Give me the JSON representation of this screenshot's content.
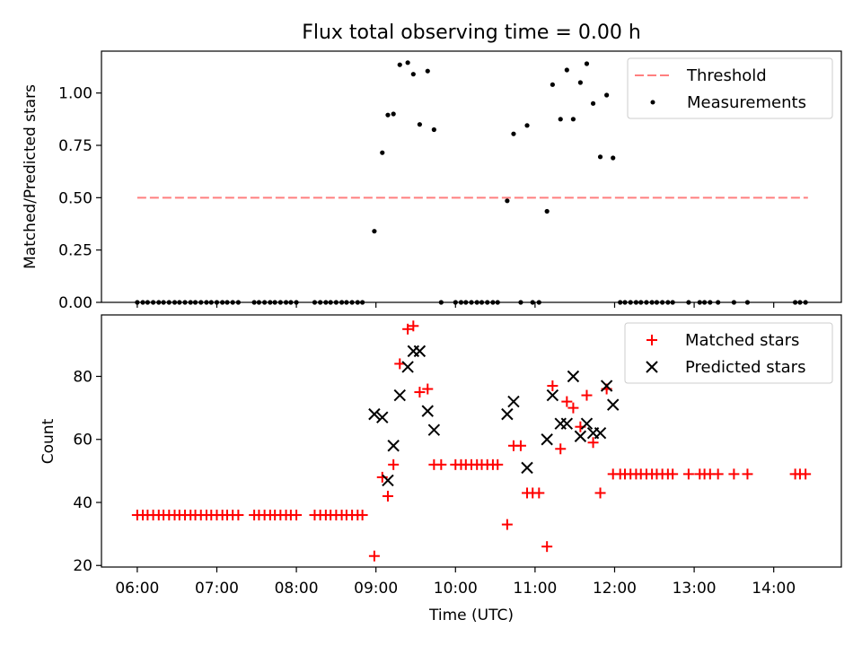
{
  "chart_data": [
    {
      "type": "scatter",
      "title": "Flux total observing time = 0.00 h",
      "xlabel": "",
      "ylabel": "Matched/Predicted stars",
      "xlim": [
        5.55,
        14.85
      ],
      "ylim": [
        0,
        1.2
      ],
      "yticks": [
        {
          "value": 0.0,
          "label": "0.00"
        },
        {
          "value": 0.25,
          "label": "0.25"
        },
        {
          "value": 0.5,
          "label": "0.50"
        },
        {
          "value": 0.75,
          "label": "0.75"
        },
        {
          "value": 1.0,
          "label": "1.00"
        }
      ],
      "legend_position": "top-right",
      "threshold": {
        "name": "Threshold",
        "value": 0.5,
        "x_range": [
          6.0,
          14.43
        ],
        "color": "#ff7f7f"
      },
      "series": [
        {
          "name": "Measurements",
          "color": "#000000",
          "points": [
            [
              6.0,
              0
            ],
            [
              6.07,
              0
            ],
            [
              6.13,
              0
            ],
            [
              6.2,
              0
            ],
            [
              6.27,
              0
            ],
            [
              6.33,
              0
            ],
            [
              6.4,
              0
            ],
            [
              6.47,
              0
            ],
            [
              6.53,
              0
            ],
            [
              6.6,
              0
            ],
            [
              6.67,
              0
            ],
            [
              6.73,
              0
            ],
            [
              6.8,
              0
            ],
            [
              6.87,
              0
            ],
            [
              6.93,
              0
            ],
            [
              7.0,
              0
            ],
            [
              7.07,
              0
            ],
            [
              7.13,
              0
            ],
            [
              7.2,
              0
            ],
            [
              7.27,
              0
            ],
            [
              7.47,
              0
            ],
            [
              7.53,
              0
            ],
            [
              7.6,
              0
            ],
            [
              7.67,
              0
            ],
            [
              7.73,
              0
            ],
            [
              7.8,
              0
            ],
            [
              7.87,
              0
            ],
            [
              7.93,
              0
            ],
            [
              8.0,
              0
            ],
            [
              8.23,
              0
            ],
            [
              8.3,
              0
            ],
            [
              8.37,
              0
            ],
            [
              8.43,
              0
            ],
            [
              8.5,
              0
            ],
            [
              8.57,
              0
            ],
            [
              8.63,
              0
            ],
            [
              8.7,
              0
            ],
            [
              8.77,
              0
            ],
            [
              8.83,
              0
            ],
            [
              8.98,
              0.34
            ],
            [
              9.08,
              0.715
            ],
            [
              9.15,
              0.895
            ],
            [
              9.22,
              0.9
            ],
            [
              9.3,
              1.135
            ],
            [
              9.4,
              1.145
            ],
            [
              9.47,
              1.09
            ],
            [
              9.55,
              0.85
            ],
            [
              9.65,
              1.105
            ],
            [
              9.73,
              0.825
            ],
            [
              9.82,
              0
            ],
            [
              10.0,
              0
            ],
            [
              10.07,
              0
            ],
            [
              10.13,
              0
            ],
            [
              10.2,
              0
            ],
            [
              10.27,
              0
            ],
            [
              10.33,
              0
            ],
            [
              10.4,
              0
            ],
            [
              10.47,
              0
            ],
            [
              10.53,
              0
            ],
            [
              10.65,
              0.485
            ],
            [
              10.73,
              0.805
            ],
            [
              10.82,
              0
            ],
            [
              10.9,
              0.845
            ],
            [
              10.97,
              0
            ],
            [
              11.05,
              0
            ],
            [
              11.15,
              0.435
            ],
            [
              11.22,
              1.04
            ],
            [
              11.32,
              0.875
            ],
            [
              11.4,
              1.11
            ],
            [
              11.48,
              0.875
            ],
            [
              11.57,
              1.05
            ],
            [
              11.65,
              1.14
            ],
            [
              11.73,
              0.95
            ],
            [
              11.82,
              0.695
            ],
            [
              11.9,
              0.99
            ],
            [
              11.98,
              0.69
            ],
            [
              12.07,
              0
            ],
            [
              12.13,
              0
            ],
            [
              12.2,
              0
            ],
            [
              12.27,
              0
            ],
            [
              12.33,
              0
            ],
            [
              12.4,
              0
            ],
            [
              12.47,
              0
            ],
            [
              12.53,
              0
            ],
            [
              12.6,
              0
            ],
            [
              12.67,
              0
            ],
            [
              12.73,
              0
            ],
            [
              12.93,
              0
            ],
            [
              13.07,
              0
            ],
            [
              13.13,
              0
            ],
            [
              13.2,
              0
            ],
            [
              13.3,
              0
            ],
            [
              13.5,
              0
            ],
            [
              13.67,
              0
            ],
            [
              14.27,
              0
            ],
            [
              14.33,
              0
            ],
            [
              14.4,
              0
            ]
          ]
        }
      ]
    },
    {
      "type": "scatter",
      "title": "",
      "xlabel": "Time (UTC)",
      "ylabel": "Count",
      "xlim": [
        5.55,
        14.85
      ],
      "ylim": [
        19.5,
        99.5
      ],
      "yticks": [
        {
          "value": 20,
          "label": "20"
        },
        {
          "value": 40,
          "label": "40"
        },
        {
          "value": 60,
          "label": "60"
        },
        {
          "value": 80,
          "label": "80"
        }
      ],
      "xticks": [
        {
          "value": 6,
          "label": "06:00"
        },
        {
          "value": 7,
          "label": "07:00"
        },
        {
          "value": 8,
          "label": "08:00"
        },
        {
          "value": 9,
          "label": "09:00"
        },
        {
          "value": 10,
          "label": "10:00"
        },
        {
          "value": 11,
          "label": "11:00"
        },
        {
          "value": 12,
          "label": "12:00"
        },
        {
          "value": 13,
          "label": "13:00"
        },
        {
          "value": 14,
          "label": "14:00"
        }
      ],
      "legend_position": "top-right",
      "series": [
        {
          "name": "Matched stars",
          "marker": "plus",
          "color": "#ff0000",
          "points": [
            [
              6.0,
              36
            ],
            [
              6.07,
              36
            ],
            [
              6.13,
              36
            ],
            [
              6.2,
              36
            ],
            [
              6.27,
              36
            ],
            [
              6.33,
              36
            ],
            [
              6.4,
              36
            ],
            [
              6.47,
              36
            ],
            [
              6.53,
              36
            ],
            [
              6.6,
              36
            ],
            [
              6.67,
              36
            ],
            [
              6.73,
              36
            ],
            [
              6.8,
              36
            ],
            [
              6.87,
              36
            ],
            [
              6.93,
              36
            ],
            [
              7.0,
              36
            ],
            [
              7.07,
              36
            ],
            [
              7.13,
              36
            ],
            [
              7.2,
              36
            ],
            [
              7.27,
              36
            ],
            [
              7.47,
              36
            ],
            [
              7.53,
              36
            ],
            [
              7.6,
              36
            ],
            [
              7.67,
              36
            ],
            [
              7.73,
              36
            ],
            [
              7.8,
              36
            ],
            [
              7.87,
              36
            ],
            [
              7.93,
              36
            ],
            [
              8.0,
              36
            ],
            [
              8.23,
              36
            ],
            [
              8.3,
              36
            ],
            [
              8.37,
              36
            ],
            [
              8.43,
              36
            ],
            [
              8.5,
              36
            ],
            [
              8.57,
              36
            ],
            [
              8.63,
              36
            ],
            [
              8.7,
              36
            ],
            [
              8.77,
              36
            ],
            [
              8.83,
              36
            ],
            [
              8.98,
              23
            ],
            [
              9.08,
              48
            ],
            [
              9.15,
              42
            ],
            [
              9.22,
              52
            ],
            [
              9.3,
              84
            ],
            [
              9.4,
              95
            ],
            [
              9.47,
              96
            ],
            [
              9.55,
              75
            ],
            [
              9.65,
              76
            ],
            [
              9.73,
              52
            ],
            [
              9.82,
              52
            ],
            [
              10.0,
              52
            ],
            [
              10.07,
              52
            ],
            [
              10.13,
              52
            ],
            [
              10.2,
              52
            ],
            [
              10.27,
              52
            ],
            [
              10.33,
              52
            ],
            [
              10.4,
              52
            ],
            [
              10.47,
              52
            ],
            [
              10.53,
              52
            ],
            [
              10.65,
              33
            ],
            [
              10.73,
              58
            ],
            [
              10.82,
              58
            ],
            [
              10.9,
              43
            ],
            [
              10.97,
              43
            ],
            [
              11.05,
              43
            ],
            [
              11.15,
              26
            ],
            [
              11.22,
              77
            ],
            [
              11.32,
              57
            ],
            [
              11.4,
              72
            ],
            [
              11.48,
              70
            ],
            [
              11.57,
              64
            ],
            [
              11.65,
              74
            ],
            [
              11.73,
              59
            ],
            [
              11.82,
              43
            ],
            [
              11.9,
              76
            ],
            [
              11.98,
              49
            ],
            [
              12.07,
              49
            ],
            [
              12.13,
              49
            ],
            [
              12.2,
              49
            ],
            [
              12.27,
              49
            ],
            [
              12.33,
              49
            ],
            [
              12.4,
              49
            ],
            [
              12.47,
              49
            ],
            [
              12.53,
              49
            ],
            [
              12.6,
              49
            ],
            [
              12.67,
              49
            ],
            [
              12.73,
              49
            ],
            [
              12.93,
              49
            ],
            [
              13.07,
              49
            ],
            [
              13.13,
              49
            ],
            [
              13.2,
              49
            ],
            [
              13.3,
              49
            ],
            [
              13.5,
              49
            ],
            [
              13.67,
              49
            ],
            [
              14.27,
              49
            ],
            [
              14.33,
              49
            ],
            [
              14.4,
              49
            ]
          ]
        },
        {
          "name": "Predicted stars",
          "marker": "x",
          "color": "#000000",
          "points": [
            [
              8.98,
              68
            ],
            [
              9.08,
              67
            ],
            [
              9.15,
              47
            ],
            [
              9.22,
              58
            ],
            [
              9.3,
              74
            ],
            [
              9.4,
              83
            ],
            [
              9.47,
              88
            ],
            [
              9.55,
              88
            ],
            [
              9.65,
              69
            ],
            [
              9.73,
              63
            ],
            [
              10.65,
              68
            ],
            [
              10.73,
              72
            ],
            [
              10.9,
              51
            ],
            [
              11.15,
              60
            ],
            [
              11.22,
              74
            ],
            [
              11.32,
              65
            ],
            [
              11.4,
              65
            ],
            [
              11.48,
              80
            ],
            [
              11.57,
              61
            ],
            [
              11.65,
              65
            ],
            [
              11.73,
              62
            ],
            [
              11.82,
              62
            ],
            [
              11.9,
              77
            ],
            [
              11.98,
              71
            ]
          ]
        }
      ]
    }
  ]
}
